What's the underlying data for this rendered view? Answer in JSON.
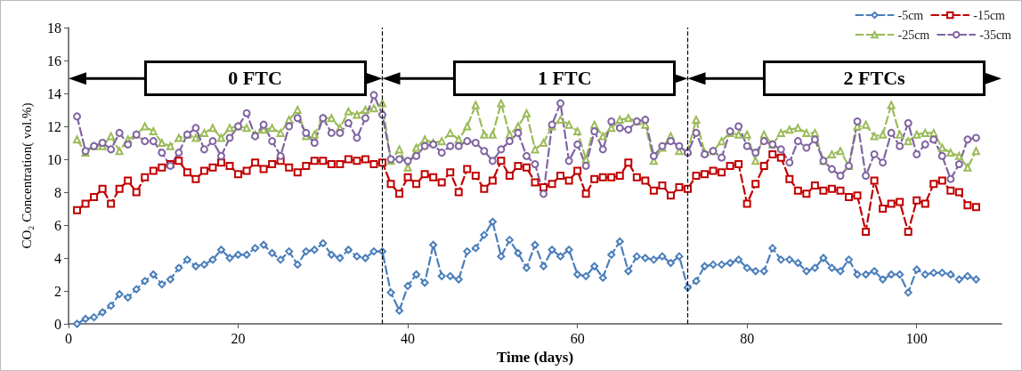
{
  "chart_data": {
    "type": "line",
    "xlabel": "Time (days)",
    "ylabel": "CO₂ Concentration( vol.%)",
    "x": [
      1,
      2,
      3,
      4,
      5,
      6,
      7,
      8,
      9,
      10,
      11,
      12,
      13,
      14,
      15,
      16,
      17,
      18,
      19,
      20,
      21,
      22,
      23,
      24,
      25,
      26,
      27,
      28,
      29,
      30,
      31,
      32,
      33,
      34,
      35,
      36,
      37,
      38,
      39,
      40,
      41,
      42,
      43,
      44,
      45,
      46,
      47,
      48,
      49,
      50,
      51,
      52,
      53,
      54,
      55,
      56,
      57,
      58,
      59,
      60,
      61,
      62,
      63,
      64,
      65,
      66,
      67,
      68,
      69,
      70,
      71,
      72,
      73,
      74,
      75,
      76,
      77,
      78,
      79,
      80,
      81,
      82,
      83,
      84,
      85,
      86,
      87,
      88,
      89,
      90,
      91,
      92,
      93,
      94,
      95,
      96,
      97,
      98,
      99,
      100,
      101,
      102,
      103,
      104,
      105,
      106,
      107
    ],
    "series": [
      {
        "name": "-5cm",
        "color": "#4a7ebb",
        "marker": "diamond",
        "values": [
          0,
          0.3,
          0.4,
          0.7,
          1.1,
          1.8,
          1.6,
          2.1,
          2.6,
          3.0,
          2.4,
          2.7,
          3.4,
          3.9,
          3.5,
          3.6,
          3.9,
          4.5,
          4.0,
          4.2,
          4.2,
          4.6,
          4.8,
          4.3,
          3.9,
          4.4,
          3.6,
          4.4,
          4.5,
          4.9,
          4.2,
          4.0,
          4.5,
          4.1,
          4.0,
          4.4,
          4.4,
          1.9,
          0.8,
          2.3,
          3.0,
          2.5,
          4.8,
          2.9,
          2.9,
          2.7,
          4.4,
          4.6,
          5.4,
          6.2,
          4.1,
          5.1,
          4.3,
          3.4,
          4.8,
          3.5,
          4.5,
          4.1,
          4.5,
          3.0,
          2.9,
          3.5,
          2.8,
          4.2,
          5.0,
          3.2,
          4.1,
          4.0,
          3.9,
          4.1,
          3.7,
          4.1,
          2.2,
          2.6,
          3.5,
          3.6,
          3.6,
          3.7,
          3.9,
          3.4,
          3.2,
          3.2,
          4.6,
          3.9,
          3.9,
          3.7,
          3.2,
          3.4,
          4.0,
          3.4,
          3.2,
          3.9,
          3.0,
          3.0,
          3.2,
          2.7,
          3.0,
          3.0,
          1.9,
          3.3,
          3.0,
          3.1,
          3.1,
          3.0,
          2.7,
          2.9,
          2.7
        ]
      },
      {
        "name": "-15cm",
        "color": "#c00000",
        "marker": "square",
        "values": [
          6.9,
          7.3,
          7.7,
          8.2,
          7.3,
          8.2,
          8.7,
          8.0,
          8.9,
          9.3,
          9.5,
          9.7,
          9.9,
          9.2,
          8.8,
          9.3,
          9.5,
          9.8,
          9.6,
          9.1,
          9.3,
          9.8,
          9.4,
          9.7,
          9.9,
          9.5,
          9.2,
          9.6,
          9.9,
          9.9,
          9.7,
          9.7,
          10.0,
          9.9,
          10.0,
          9.7,
          9.8,
          8.5,
          7.9,
          8.9,
          8.5,
          9.1,
          8.9,
          8.6,
          9.2,
          8.0,
          9.4,
          9.0,
          8.2,
          8.7,
          9.9,
          9.0,
          9.6,
          9.5,
          8.6,
          8.3,
          8.5,
          9.0,
          8.7,
          9.3,
          7.9,
          8.8,
          8.9,
          8.9,
          9.0,
          9.8,
          8.9,
          8.7,
          8.1,
          8.4,
          7.8,
          8.3,
          8.2,
          9.0,
          9.1,
          9.3,
          9.2,
          9.6,
          9.7,
          7.3,
          8.5,
          9.6,
          10.3,
          10.1,
          8.8,
          8.1,
          7.9,
          8.4,
          8.1,
          8.2,
          8.1,
          7.7,
          7.8,
          5.6,
          8.7,
          7.0,
          7.3,
          7.4,
          5.6,
          7.5,
          7.3,
          8.5,
          8.7,
          8.1,
          8.0,
          7.2,
          7.1
        ]
      },
      {
        "name": "-25cm",
        "color": "#9bbb59",
        "marker": "triangle",
        "values": [
          11.2,
          10.4,
          10.8,
          10.8,
          11.4,
          10.5,
          11.2,
          11.5,
          12.0,
          11.7,
          11.0,
          10.8,
          11.3,
          11.5,
          11.3,
          11.6,
          11.9,
          11.3,
          11.9,
          12.0,
          11.9,
          11.5,
          11.8,
          11.9,
          11.6,
          12.4,
          13.0,
          11.4,
          11.5,
          12.5,
          12.5,
          11.9,
          12.9,
          12.7,
          13.0,
          13.1,
          13.4,
          9.9,
          10.6,
          9.5,
          10.7,
          11.2,
          11.0,
          11.1,
          11.6,
          11.2,
          12.0,
          13.3,
          11.5,
          11.5,
          13.4,
          11.5,
          12.0,
          12.8,
          10.6,
          11.0,
          12.0,
          12.4,
          12.1,
          11.7,
          10.0,
          12.1,
          11.4,
          11.9,
          12.4,
          12.5,
          12.3,
          12.1,
          9.9,
          10.7,
          11.4,
          10.5,
          10.5,
          12.4,
          10.4,
          10.5,
          11.1,
          11.6,
          11.5,
          11.5,
          9.9,
          11.5,
          10.9,
          11.6,
          11.8,
          11.9,
          11.6,
          11.6,
          9.9,
          10.3,
          10.5,
          9.6,
          12.0,
          12.1,
          11.4,
          11.5,
          13.3,
          11.5,
          11.1,
          11.5,
          11.6,
          11.6,
          10.7,
          10.4,
          10.2,
          9.5,
          10.5
        ]
      },
      {
        "name": "-35cm",
        "color": "#8064a2",
        "marker": "circle",
        "values": [
          12.6,
          10.5,
          10.8,
          11.0,
          10.6,
          11.6,
          10.9,
          11.5,
          11.1,
          11.1,
          10.4,
          9.6,
          10.4,
          11.5,
          11.9,
          10.6,
          11.1,
          10.2,
          11.3,
          12.0,
          12.8,
          11.4,
          12.1,
          11.1,
          10.2,
          12.0,
          12.5,
          11.6,
          11.0,
          12.5,
          11.6,
          11.6,
          12.2,
          11.3,
          12.5,
          13.9,
          12.7,
          10.0,
          10.0,
          9.9,
          10.2,
          10.8,
          10.9,
          10.4,
          10.8,
          10.8,
          11.1,
          11.0,
          10.5,
          9.9,
          10.6,
          11.1,
          11.6,
          10.2,
          9.7,
          7.9,
          12.1,
          13.4,
          9.9,
          10.9,
          9.6,
          11.7,
          10.6,
          12.3,
          11.9,
          11.8,
          12.3,
          12.4,
          10.2,
          10.8,
          11.1,
          10.8,
          10.4,
          11.6,
          10.3,
          10.5,
          10.1,
          11.7,
          12.0,
          10.8,
          10.4,
          11.1,
          10.9,
          10.6,
          9.8,
          11.1,
          10.7,
          11.2,
          9.9,
          9.4,
          9.0,
          9.6,
          12.3,
          9.0,
          10.3,
          9.8,
          11.6,
          10.8,
          12.2,
          10.3,
          10.9,
          11.2,
          10.2,
          8.8,
          9.7,
          11.2,
          11.3
        ]
      }
    ],
    "xlim": [
      0,
      110
    ],
    "xticks": [
      0,
      20,
      40,
      60,
      80,
      100
    ],
    "ylim": [
      0,
      18
    ],
    "yticks": [
      0,
      2,
      4,
      6,
      8,
      10,
      12,
      14,
      16,
      18
    ],
    "ref_lines": [
      {
        "axis": "x",
        "value": 37,
        "color": "#000000",
        "line_style": "dashed"
      },
      {
        "axis": "x",
        "value": 73,
        "color": "#000000",
        "line_style": "dashed"
      }
    ],
    "annotations": [
      "0 FTC",
      "1 FTC",
      "2 FTCs"
    ],
    "line_style": "dashed",
    "grid": false,
    "legend": "top right"
  }
}
